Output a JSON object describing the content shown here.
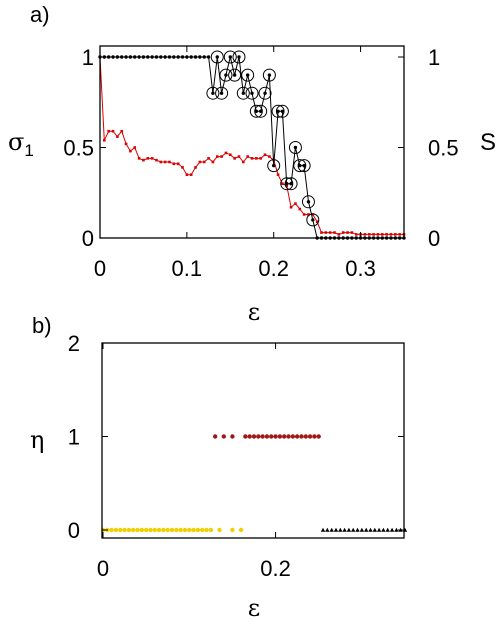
{
  "chart_data": [
    {
      "panel_label": "a)",
      "type": "line",
      "xlabel": "ε",
      "ylabel_left": "σ",
      "ylabel_left_sub": "1",
      "ylabel_right": "S",
      "xlim": [
        0,
        0.35
      ],
      "ylim": [
        0,
        1.1
      ],
      "xticks": [
        "0",
        "0.1",
        "0.2",
        "0.3"
      ],
      "yticks_left": [
        "0",
        "0.5",
        "1"
      ],
      "yticks_right": [
        "0",
        "0.5",
        "1"
      ],
      "grid": false,
      "series": [
        {
          "color": "#dd0000",
          "marker": "square",
          "points": [
            [
              0.0,
              1.0
            ],
            [
              0.005,
              0.54
            ],
            [
              0.01,
              0.59
            ],
            [
              0.015,
              0.59
            ],
            [
              0.02,
              0.56
            ],
            [
              0.025,
              0.59
            ],
            [
              0.03,
              0.52
            ],
            [
              0.035,
              0.48
            ],
            [
              0.04,
              0.5
            ],
            [
              0.045,
              0.44
            ],
            [
              0.05,
              0.43
            ],
            [
              0.055,
              0.44
            ],
            [
              0.06,
              0.44
            ],
            [
              0.065,
              0.43
            ],
            [
              0.07,
              0.42
            ],
            [
              0.075,
              0.42
            ],
            [
              0.08,
              0.42
            ],
            [
              0.085,
              0.41
            ],
            [
              0.09,
              0.41
            ],
            [
              0.095,
              0.39
            ],
            [
              0.1,
              0.35
            ],
            [
              0.105,
              0.35
            ],
            [
              0.11,
              0.39
            ],
            [
              0.115,
              0.42
            ],
            [
              0.12,
              0.42
            ],
            [
              0.125,
              0.44
            ],
            [
              0.13,
              0.42
            ],
            [
              0.135,
              0.45
            ],
            [
              0.14,
              0.45
            ],
            [
              0.145,
              0.47
            ],
            [
              0.15,
              0.46
            ],
            [
              0.155,
              0.44
            ],
            [
              0.16,
              0.45
            ],
            [
              0.165,
              0.42
            ],
            [
              0.17,
              0.45
            ],
            [
              0.175,
              0.44
            ],
            [
              0.18,
              0.44
            ],
            [
              0.185,
              0.44
            ],
            [
              0.19,
              0.46
            ],
            [
              0.195,
              0.45
            ],
            [
              0.2,
              0.43
            ],
            [
              0.205,
              0.35
            ],
            [
              0.21,
              0.3
            ],
            [
              0.215,
              0.29
            ],
            [
              0.22,
              0.17
            ],
            [
              0.225,
              0.19
            ],
            [
              0.23,
              0.16
            ],
            [
              0.235,
              0.13
            ],
            [
              0.24,
              0.13
            ],
            [
              0.245,
              0.13
            ],
            [
              0.25,
              0.09
            ],
            [
              0.255,
              0.03
            ],
            [
              0.26,
              0.03
            ],
            [
              0.265,
              0.03
            ],
            [
              0.27,
              0.03
            ],
            [
              0.275,
              0.02
            ],
            [
              0.28,
              0.03
            ],
            [
              0.285,
              0.03
            ],
            [
              0.29,
              0.03
            ],
            [
              0.295,
              0.02
            ],
            [
              0.3,
              0.02
            ],
            [
              0.305,
              0.02
            ],
            [
              0.31,
              0.02
            ],
            [
              0.315,
              0.02
            ],
            [
              0.32,
              0.02
            ],
            [
              0.325,
              0.02
            ],
            [
              0.33,
              0.02
            ],
            [
              0.335,
              0.02
            ],
            [
              0.34,
              0.02
            ],
            [
              0.345,
              0.02
            ],
            [
              0.35,
              0.02
            ]
          ]
        },
        {
          "color": "#000000",
          "marker": "dot",
          "circled_from_x": 0.13,
          "points": [
            [
              0.0,
              1.0
            ],
            [
              0.005,
              1.0
            ],
            [
              0.01,
              1.0
            ],
            [
              0.015,
              1.0
            ],
            [
              0.02,
              1.0
            ],
            [
              0.025,
              1.0
            ],
            [
              0.03,
              1.0
            ],
            [
              0.035,
              1.0
            ],
            [
              0.04,
              1.0
            ],
            [
              0.045,
              1.0
            ],
            [
              0.05,
              1.0
            ],
            [
              0.055,
              1.0
            ],
            [
              0.06,
              1.0
            ],
            [
              0.065,
              1.0
            ],
            [
              0.07,
              1.0
            ],
            [
              0.075,
              1.0
            ],
            [
              0.08,
              1.0
            ],
            [
              0.085,
              1.0
            ],
            [
              0.09,
              1.0
            ],
            [
              0.095,
              1.0
            ],
            [
              0.1,
              1.0
            ],
            [
              0.105,
              1.0
            ],
            [
              0.11,
              1.0
            ],
            [
              0.115,
              1.0
            ],
            [
              0.12,
              1.0
            ],
            [
              0.125,
              1.0
            ],
            [
              0.13,
              0.8
            ],
            [
              0.135,
              1.0
            ],
            [
              0.14,
              0.8
            ],
            [
              0.145,
              0.9
            ],
            [
              0.15,
              1.0
            ],
            [
              0.155,
              0.9
            ],
            [
              0.16,
              1.0
            ],
            [
              0.165,
              0.8
            ],
            [
              0.17,
              0.9
            ],
            [
              0.175,
              0.8
            ],
            [
              0.18,
              0.7
            ],
            [
              0.185,
              0.7
            ],
            [
              0.19,
              0.8
            ],
            [
              0.195,
              0.9
            ],
            [
              0.2,
              0.4
            ],
            [
              0.205,
              0.7
            ],
            [
              0.21,
              0.7
            ],
            [
              0.215,
              0.3
            ],
            [
              0.22,
              0.3
            ],
            [
              0.225,
              0.5
            ],
            [
              0.23,
              0.4
            ],
            [
              0.235,
              0.4
            ],
            [
              0.24,
              0.2
            ],
            [
              0.245,
              0.1
            ],
            [
              0.25,
              0.0
            ],
            [
              0.255,
              0.0
            ],
            [
              0.26,
              0.0
            ],
            [
              0.265,
              0.0
            ],
            [
              0.27,
              0.0
            ],
            [
              0.275,
              0.0
            ],
            [
              0.28,
              0.0
            ],
            [
              0.285,
              0.0
            ],
            [
              0.29,
              0.0
            ],
            [
              0.295,
              0.0
            ],
            [
              0.3,
              0.0
            ],
            [
              0.305,
              0.0
            ],
            [
              0.31,
              0.0
            ],
            [
              0.315,
              0.0
            ],
            [
              0.32,
              0.0
            ],
            [
              0.325,
              0.0
            ],
            [
              0.33,
              0.0
            ],
            [
              0.335,
              0.0
            ],
            [
              0.34,
              0.0
            ],
            [
              0.345,
              0.0
            ],
            [
              0.35,
              0.0
            ]
          ]
        }
      ]
    },
    {
      "panel_label": "b)",
      "type": "scatter",
      "xlabel": "ε",
      "ylabel": "η",
      "xlim": [
        0,
        0.35
      ],
      "ylim": [
        0,
        2
      ],
      "xticks": [
        "0",
        "0.2"
      ],
      "yticks": [
        "0",
        "1",
        "2"
      ],
      "grid": false,
      "series": [
        {
          "color": "#f0d000",
          "marker": "dot",
          "x": [
            0.0,
            0.005,
            0.01,
            0.015,
            0.02,
            0.025,
            0.03,
            0.035,
            0.04,
            0.045,
            0.05,
            0.055,
            0.06,
            0.065,
            0.07,
            0.075,
            0.08,
            0.085,
            0.09,
            0.095,
            0.1,
            0.105,
            0.11,
            0.115,
            0.12,
            0.125,
            0.135,
            0.15,
            0.16
          ],
          "y": 0
        },
        {
          "color": "#a01818",
          "marker": "dot",
          "x": [
            0.13,
            0.14,
            0.15,
            0.165,
            0.17,
            0.175,
            0.18,
            0.185,
            0.19,
            0.195,
            0.2,
            0.205,
            0.21,
            0.215,
            0.22,
            0.225,
            0.23,
            0.235,
            0.24,
            0.245,
            0.25
          ],
          "y": 1
        },
        {
          "color": "#000000",
          "marker": "triangle",
          "x": [
            0.255,
            0.26,
            0.265,
            0.27,
            0.275,
            0.28,
            0.285,
            0.29,
            0.295,
            0.3,
            0.305,
            0.31,
            0.315,
            0.32,
            0.325,
            0.33,
            0.335,
            0.34,
            0.345,
            0.35
          ],
          "y": 0
        }
      ]
    }
  ]
}
